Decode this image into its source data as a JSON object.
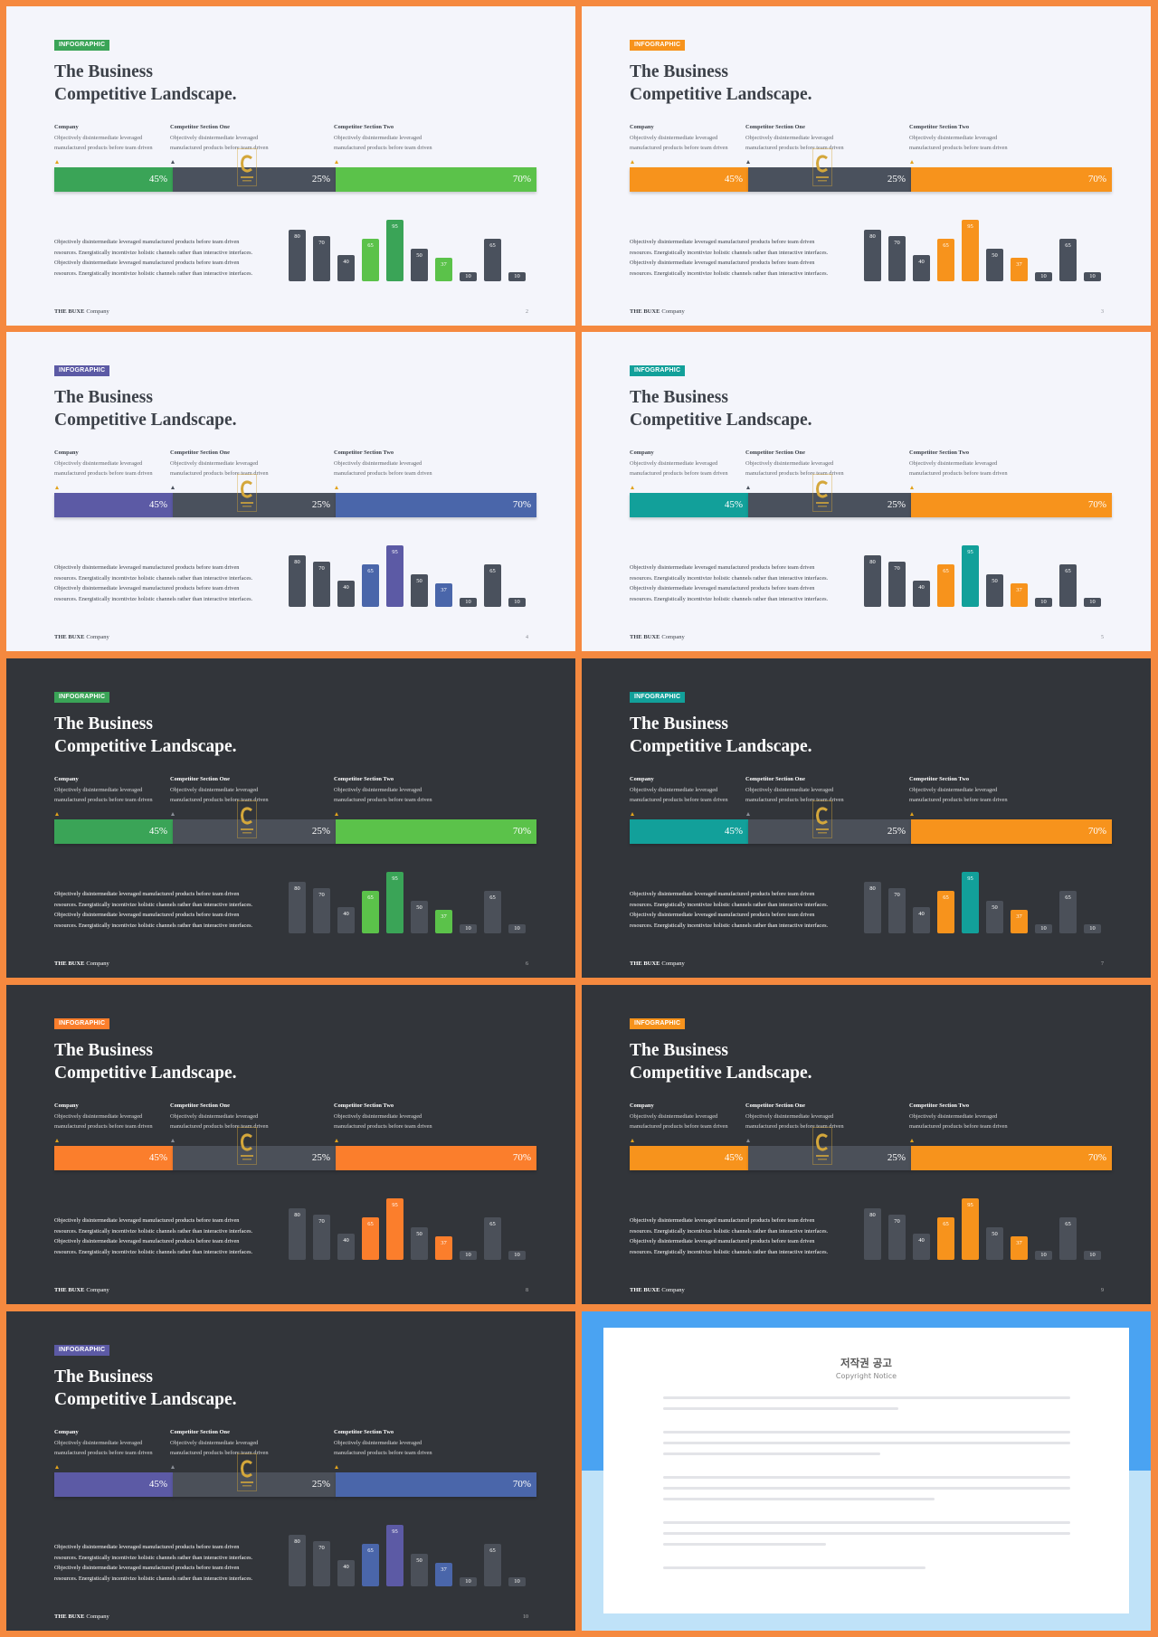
{
  "slide": {
    "badge": "INFOGRAPHIC",
    "title_line1": "The Business",
    "title_line2": "Competitive Landscape.",
    "columns": [
      {
        "heading": "Company",
        "line1": "Objectively disintermediate leveraged",
        "line2": "manufactured products before team driven"
      },
      {
        "heading": "Competitor Section One",
        "line1": "Objectively disintermediate leveraged",
        "line2": "manufactured products before team driven"
      },
      {
        "heading": "Competitor Section Two",
        "line1": "Objectively disintermediate leveraged",
        "line2": "manufactured products before team driven"
      }
    ],
    "segments": [
      "45%",
      "25%",
      "70%"
    ],
    "paragraph": [
      "Objectively disintermediate leveraged manufactured products before team driven",
      "resources. Energistically incentivize holistic channels rather than interactive interfaces.",
      "Objectively disintermediate leveraged manufactured products before team driven",
      "resources. Energistically incentivize holistic channels rather than interactive interfaces."
    ],
    "footer_bold": "THE BUXE",
    "footer_rest": "Company"
  },
  "chart_data": {
    "type": "bar",
    "values": [
      80,
      70,
      40,
      65,
      95,
      50,
      37,
      10,
      65,
      10
    ],
    "highlighted_indices": [
      3,
      4,
      6
    ]
  },
  "variants": [
    {
      "page": "2",
      "theme": "light",
      "badge_color": "#3aa457",
      "seg1": "#3aa457",
      "seg3": "#5bc24a",
      "bar_accent": [
        "#5bc24a",
        "#3aa457",
        "#5bc24a"
      ]
    },
    {
      "page": "3",
      "theme": "light",
      "badge_color": "#f7931c",
      "seg1": "#f7931c",
      "seg3": "#f7931c",
      "bar_accent": [
        "#f7931c",
        "#f7931c",
        "#f7931c"
      ]
    },
    {
      "page": "4",
      "theme": "light",
      "badge_color": "#5c5aa5",
      "seg1": "#5c5aa5",
      "seg3": "#4a66aa",
      "bar_accent": [
        "#4a66aa",
        "#5c5aa5",
        "#4a66aa"
      ]
    },
    {
      "page": "5",
      "theme": "light",
      "badge_color": "#12a09a",
      "seg1": "#12a09a",
      "seg3": "#f7931c",
      "bar_accent": [
        "#f7931c",
        "#12a09a",
        "#f7931c"
      ]
    },
    {
      "page": "6",
      "theme": "dark",
      "badge_color": "#3aa457",
      "seg1": "#3aa457",
      "seg3": "#5bc24a",
      "bar_accent": [
        "#5bc24a",
        "#3aa457",
        "#5bc24a"
      ]
    },
    {
      "page": "7",
      "theme": "dark",
      "badge_color": "#12a09a",
      "seg1": "#12a09a",
      "seg3": "#f7931c",
      "bar_accent": [
        "#f7931c",
        "#12a09a",
        "#f7931c"
      ]
    },
    {
      "page": "8",
      "theme": "dark",
      "badge_color": "#fb7e2c",
      "seg1": "#fb7e2c",
      "seg3": "#fb7e2c",
      "bar_accent": [
        "#fb7e2c",
        "#fb7e2c",
        "#fb7e2c"
      ]
    },
    {
      "page": "9",
      "theme": "dark",
      "badge_color": "#f7931c",
      "seg1": "#f7931c",
      "seg3": "#f7931c",
      "bar_accent": [
        "#f7931c",
        "#f7931c",
        "#f7931c"
      ]
    },
    {
      "page": "10",
      "theme": "dark",
      "badge_color": "#5c5aa5",
      "seg1": "#5c5aa5",
      "seg3": "#4a66aa",
      "bar_accent": [
        "#4a66aa",
        "#5c5aa5",
        "#4a66aa"
      ]
    }
  ],
  "theme_colors": {
    "light_seg2": "#4a515d",
    "dark_seg2": "#4b5059",
    "light_bar": "#4a515d",
    "dark_bar": "#4b5059",
    "logo_gold": "#d4a73b",
    "border_orange": "#f5893f"
  },
  "notice": {
    "title": "저작권 공고",
    "subtitle": "Copyright Notice"
  }
}
